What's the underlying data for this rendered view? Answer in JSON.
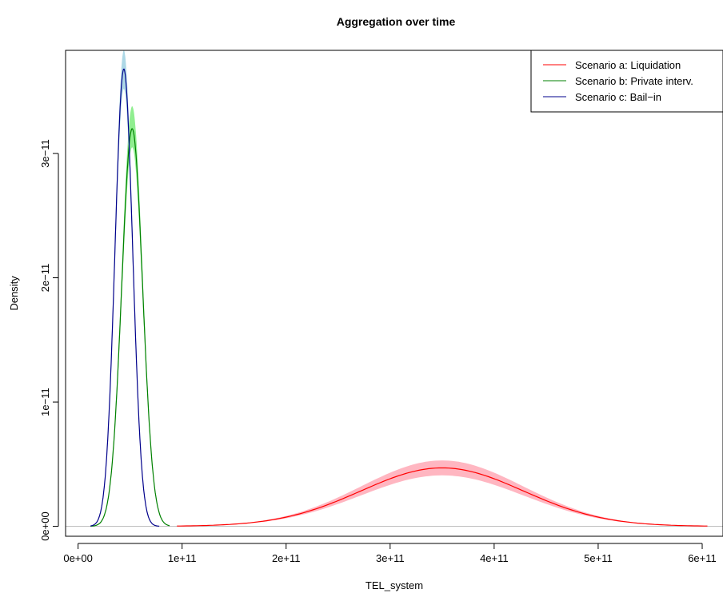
{
  "chart_data": {
    "type": "line",
    "title": "Aggregation over time",
    "xlabel": "TEL_system",
    "ylabel": "Density",
    "xlim": [
      -12000000000.0,
      620000000000.0
    ],
    "ylim": [
      -8e-13,
      3.83e-11
    ],
    "x_ticks": [
      {
        "value": 0,
        "label": "0e+00"
      },
      {
        "value": 100000000000.0,
        "label": "1e+11"
      },
      {
        "value": 200000000000.0,
        "label": "2e+11"
      },
      {
        "value": 300000000000.0,
        "label": "3e+11"
      },
      {
        "value": 400000000000.0,
        "label": "4e+11"
      },
      {
        "value": 500000000000.0,
        "label": "5e+11"
      },
      {
        "value": 600000000000.0,
        "label": "6e+11"
      }
    ],
    "y_ticks": [
      {
        "value": 0,
        "label": "0e+00"
      },
      {
        "value": 1e-11,
        "label": "1e−11"
      },
      {
        "value": 2e-11,
        "label": "2e−11"
      },
      {
        "value": 3e-11,
        "label": "3e−11"
      }
    ],
    "baseline": {
      "value": 0,
      "color": "#bebebe"
    },
    "legend_position": "top-right",
    "series": [
      {
        "name": "Scenario a: Liquidation",
        "color": "#ff0000",
        "band_color": "#ffb6c1",
        "x_range": [
          95000000000.0,
          605000000000.0
        ],
        "peak_x": 350000000000.0,
        "sd": 78000000000.0,
        "peak_y": 4.7e-12,
        "band_upper_peak": 5.3e-12,
        "band_lower_peak": 4.1e-12
      },
      {
        "name": "Scenario b: Private interv.",
        "color": "#008000",
        "band_color": "#90ee90",
        "x_range": [
          12000000000.0,
          88000000000.0
        ],
        "peak_x": 52000000000.0,
        "sd": 10000000000.0,
        "peak_y": 3.2e-11,
        "band_upper_peak": 3.38e-11,
        "band_lower_peak": 3.05e-11
      },
      {
        "name": "Scenario c: Bail−in",
        "color": "#00008b",
        "band_color": "#add8e6",
        "x_range": [
          12000000000.0,
          78000000000.0
        ],
        "peak_x": 44000000000.0,
        "sd": 8500000000.0,
        "peak_y": 3.68e-11,
        "band_upper_peak": 3.83e-11,
        "band_lower_peak": 3.52e-11
      }
    ]
  }
}
